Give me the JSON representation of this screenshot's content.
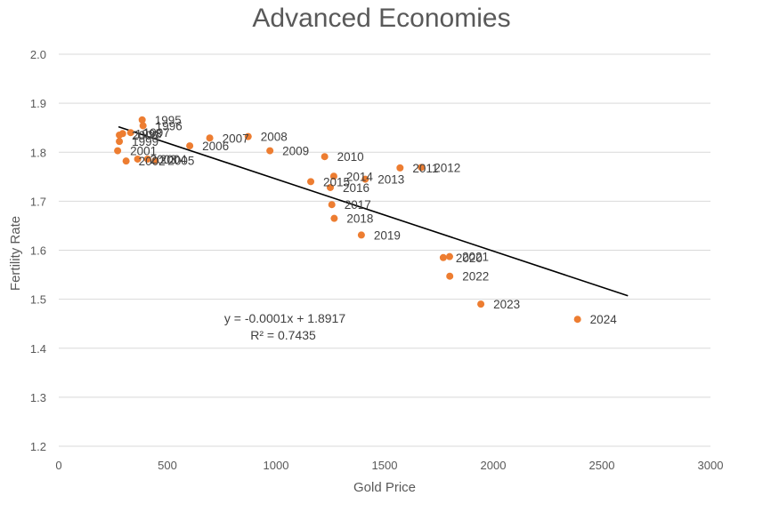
{
  "chart_data": {
    "type": "scatter",
    "title": "Advanced Economies",
    "xlabel": "Gold Price",
    "ylabel": "Fertility Rate",
    "xlim": [
      0,
      3000
    ],
    "ylim": [
      1.2,
      2.0
    ],
    "xticks": [
      0,
      500,
      1000,
      1500,
      2000,
      2500,
      3000
    ],
    "yticks": [
      1.2,
      1.3,
      1.4,
      1.5,
      1.6,
      1.7,
      1.8,
      1.9,
      2.0
    ],
    "ytick_labels": [
      "1.2",
      "1.3",
      "1.4",
      "1.5",
      "1.6",
      "1.7",
      "1.8",
      "1.9",
      "2.0"
    ],
    "grid": "horizontal",
    "point_color": "#ED7D31",
    "trendline_color": "#000000",
    "points": [
      {
        "year": "1995",
        "x": 384,
        "y": 1.866
      },
      {
        "year": "1996",
        "x": 388,
        "y": 1.854
      },
      {
        "year": "1997",
        "x": 331,
        "y": 1.84
      },
      {
        "year": "1998",
        "x": 294,
        "y": 1.838
      },
      {
        "year": "1999",
        "x": 279,
        "y": 1.822
      },
      {
        "year": "2000",
        "x": 279,
        "y": 1.835
      },
      {
        "year": "2001",
        "x": 271,
        "y": 1.803
      },
      {
        "year": "2002",
        "x": 310,
        "y": 1.782
      },
      {
        "year": "2003",
        "x": 363,
        "y": 1.786
      },
      {
        "year": "2004",
        "x": 409,
        "y": 1.786
      },
      {
        "year": "2005",
        "x": 444,
        "y": 1.783
      },
      {
        "year": "2006",
        "x": 603,
        "y": 1.813
      },
      {
        "year": "2007",
        "x": 695,
        "y": 1.829
      },
      {
        "year": "2008",
        "x": 872,
        "y": 1.832
      },
      {
        "year": "2009",
        "x": 972,
        "y": 1.803
      },
      {
        "year": "2010",
        "x": 1224,
        "y": 1.791
      },
      {
        "year": "2011",
        "x": 1571,
        "y": 1.768
      },
      {
        "year": "2012",
        "x": 1669,
        "y": 1.769
      },
      {
        "year": "2013",
        "x": 1411,
        "y": 1.745
      },
      {
        "year": "2014",
        "x": 1266,
        "y": 1.751
      },
      {
        "year": "2015",
        "x": 1160,
        "y": 1.74
      },
      {
        "year": "2016",
        "x": 1250,
        "y": 1.728
      },
      {
        "year": "2017",
        "x": 1257,
        "y": 1.693
      },
      {
        "year": "2018",
        "x": 1268,
        "y": 1.665
      },
      {
        "year": "2019",
        "x": 1393,
        "y": 1.631
      },
      {
        "year": "2020",
        "x": 1770,
        "y": 1.585
      },
      {
        "year": "2021",
        "x": 1799,
        "y": 1.587
      },
      {
        "year": "2022",
        "x": 1800,
        "y": 1.547
      },
      {
        "year": "2023",
        "x": 1943,
        "y": 1.49
      },
      {
        "year": "2024",
        "x": 2388,
        "y": 1.459
      }
    ],
    "point_x_overrides_note": "",
    "trendline": {
      "x_start": 275,
      "x_end": 2620,
      "y_start": 1.852,
      "y_end": 1.507,
      "equation": "y = -0.0001x + 1.8917",
      "r_squared": "R² = 0.7435"
    }
  }
}
